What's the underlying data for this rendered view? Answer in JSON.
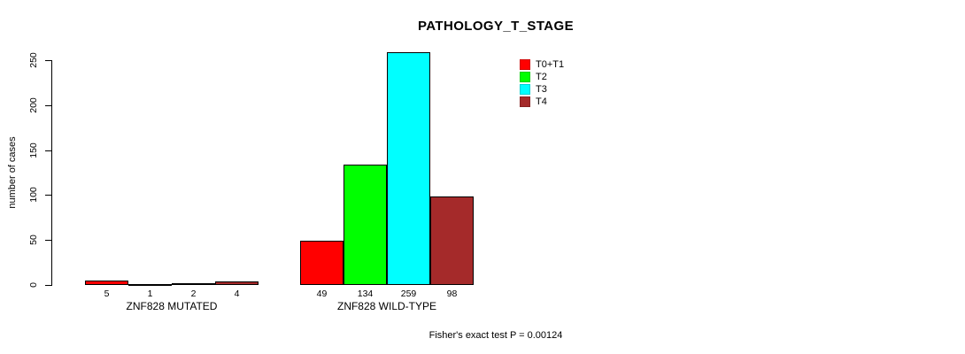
{
  "title": "PATHOLOGY_T_STAGE",
  "ylabel": "number of cases",
  "annotation": "Fisher's exact test P = 0.00124",
  "chart_data": {
    "type": "bar",
    "title": "PATHOLOGY_T_STAGE",
    "ylabel": "number of cases",
    "xlabel": "",
    "ylim": [
      0,
      250
    ],
    "yticks": [
      0,
      50,
      100,
      150,
      200,
      250
    ],
    "grid": false,
    "legend_position": "top-right",
    "legend": [
      {
        "label": "T0+T1",
        "color": "#ff0000"
      },
      {
        "label": "T2",
        "color": "#00ff00"
      },
      {
        "label": "T3",
        "color": "#00ffff"
      },
      {
        "label": "T4",
        "color": "#a52a2a"
      }
    ],
    "categories": [
      "ZNF828 MUTATED",
      "ZNF828 WILD-TYPE"
    ],
    "groups": [
      {
        "label": "ZNF828 MUTATED",
        "values": [
          5,
          1,
          2,
          4
        ]
      },
      {
        "label": "ZNF828 WILD-TYPE",
        "values": [
          49,
          134,
          259,
          98
        ]
      }
    ],
    "series": [
      {
        "name": "T0+T1",
        "color": "#ff0000",
        "values": [
          5,
          49
        ]
      },
      {
        "name": "T2",
        "color": "#00ff00",
        "values": [
          1,
          134
        ]
      },
      {
        "name": "T3",
        "color": "#00ffff",
        "values": [
          2,
          259
        ]
      },
      {
        "name": "T4",
        "color": "#a52a2a",
        "values": [
          4,
          98
        ]
      }
    ],
    "annotation": "Fisher's exact test P = 0.00124"
  }
}
